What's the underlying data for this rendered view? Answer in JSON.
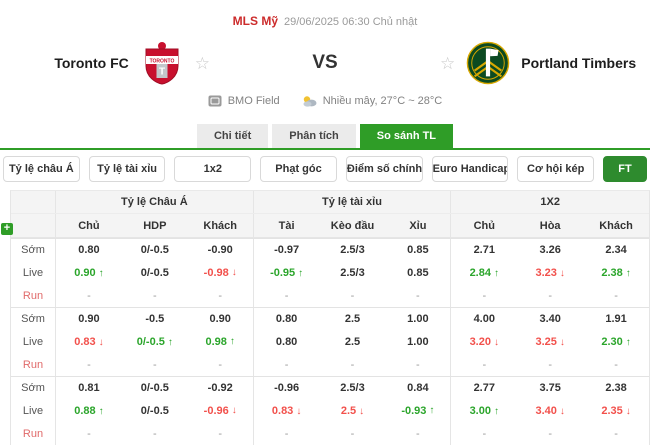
{
  "header": {
    "league": "MLS Mỹ",
    "datetime": "29/06/2025 06:30 Chủ nhật",
    "home_name": "Toronto FC",
    "away_name": "Portland Timbers",
    "vs": "VS",
    "venue": "BMO Field",
    "weather": "Nhiều mây, 27°C ~ 28°C"
  },
  "tabs": [
    {
      "label": "Chi tiết",
      "active": false
    },
    {
      "label": "Phân tích",
      "active": false
    },
    {
      "label": "So sánh TL",
      "active": true
    }
  ],
  "filters": [
    "Tỷ lệ châu Á",
    "Tỷ lệ tài xỉu",
    "1x2",
    "Phạt góc",
    "Điểm số chính xác",
    "Euro Handicap",
    "Cơ hội kép"
  ],
  "ft_label": "FT",
  "add_label": "+",
  "colors": {
    "accent_green": "#2f9d27",
    "ft_green": "#2e8b2e",
    "league_red": "#cc2b2b",
    "up_green": "#2ba52b",
    "down_red": "#f2504b"
  },
  "table": {
    "groups": [
      {
        "title": "Tỷ lệ Châu Á",
        "columns": [
          "Chủ",
          "HDP",
          "Khách"
        ]
      },
      {
        "title": "Tỷ lệ tài xỉu",
        "columns": [
          "Tài",
          "Kèo đầu",
          "Xỉu"
        ]
      },
      {
        "title": "1X2",
        "columns": [
          "Chủ",
          "Hòa",
          "Khách"
        ]
      }
    ],
    "row_labels": {
      "early": "Sớm",
      "live": "Live",
      "run": "Run"
    },
    "rows": [
      {
        "early": [
          {
            "v": "0.80"
          },
          {
            "v": "0/-0.5"
          },
          {
            "v": "-0.90"
          },
          {
            "v": "-0.97"
          },
          {
            "v": "2.5/3"
          },
          {
            "v": "0.85"
          },
          {
            "v": "2.71"
          },
          {
            "v": "3.26"
          },
          {
            "v": "2.34"
          }
        ],
        "live": [
          {
            "v": "0.90",
            "t": "up"
          },
          {
            "v": "0/-0.5"
          },
          {
            "v": "-0.98",
            "t": "down"
          },
          {
            "v": "-0.95",
            "t": "up"
          },
          {
            "v": "2.5/3"
          },
          {
            "v": "0.85"
          },
          {
            "v": "2.84",
            "t": "up"
          },
          {
            "v": "3.23",
            "t": "down"
          },
          {
            "v": "2.38",
            "t": "up"
          }
        ],
        "run": [
          {
            "v": "-"
          },
          {
            "v": "-"
          },
          {
            "v": "-"
          },
          {
            "v": "-"
          },
          {
            "v": "-"
          },
          {
            "v": "-"
          },
          {
            "v": "-"
          },
          {
            "v": "-"
          },
          {
            "v": "-"
          }
        ]
      },
      {
        "early": [
          {
            "v": "0.90"
          },
          {
            "v": "-0.5"
          },
          {
            "v": "0.90"
          },
          {
            "v": "0.80"
          },
          {
            "v": "2.5"
          },
          {
            "v": "1.00"
          },
          {
            "v": "4.00"
          },
          {
            "v": "3.40"
          },
          {
            "v": "1.91"
          }
        ],
        "live": [
          {
            "v": "0.83",
            "t": "down"
          },
          {
            "v": "0/-0.5",
            "t": "up"
          },
          {
            "v": "0.98",
            "t": "up"
          },
          {
            "v": "0.80"
          },
          {
            "v": "2.5"
          },
          {
            "v": "1.00"
          },
          {
            "v": "3.20",
            "t": "down"
          },
          {
            "v": "3.25",
            "t": "down"
          },
          {
            "v": "2.30",
            "t": "up"
          }
        ],
        "run": [
          {
            "v": "-"
          },
          {
            "v": "-"
          },
          {
            "v": "-"
          },
          {
            "v": "-"
          },
          {
            "v": "-"
          },
          {
            "v": "-"
          },
          {
            "v": "-"
          },
          {
            "v": "-"
          },
          {
            "v": "-"
          }
        ]
      },
      {
        "early": [
          {
            "v": "0.81"
          },
          {
            "v": "0/-0.5"
          },
          {
            "v": "-0.92"
          },
          {
            "v": "-0.96"
          },
          {
            "v": "2.5/3"
          },
          {
            "v": "0.84"
          },
          {
            "v": "2.77"
          },
          {
            "v": "3.75"
          },
          {
            "v": "2.38"
          }
        ],
        "live": [
          {
            "v": "0.88",
            "t": "up"
          },
          {
            "v": "0/-0.5"
          },
          {
            "v": "-0.96",
            "t": "down"
          },
          {
            "v": "0.83",
            "t": "down"
          },
          {
            "v": "2.5",
            "t": "down"
          },
          {
            "v": "-0.93",
            "t": "up"
          },
          {
            "v": "3.00",
            "t": "up"
          },
          {
            "v": "3.40",
            "t": "down"
          },
          {
            "v": "2.35",
            "t": "down"
          }
        ],
        "run": [
          {
            "v": "-"
          },
          {
            "v": "-"
          },
          {
            "v": "-"
          },
          {
            "v": "-"
          },
          {
            "v": "-"
          },
          {
            "v": "-"
          },
          {
            "v": "-"
          },
          {
            "v": "-"
          },
          {
            "v": "-"
          }
        ]
      }
    ]
  }
}
